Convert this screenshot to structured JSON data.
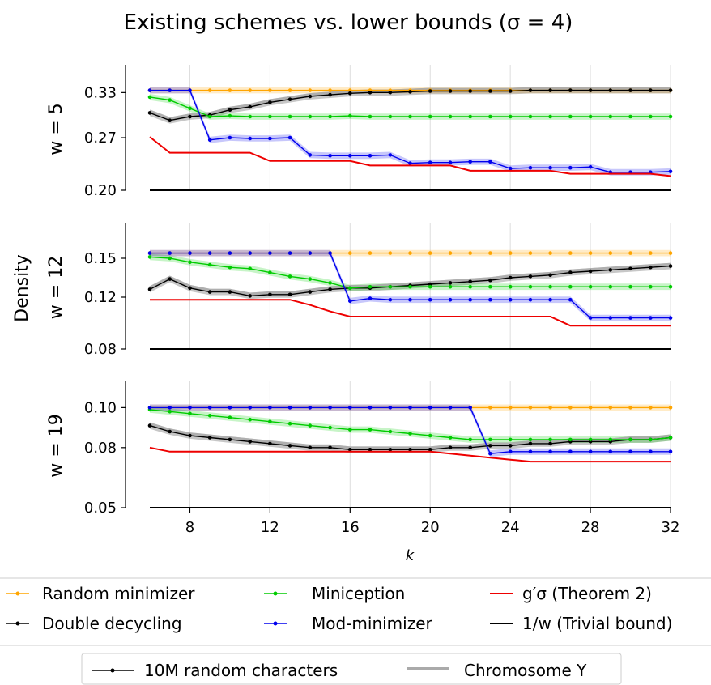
{
  "chart_data": {
    "type": "line",
    "title": "Existing schemes vs. lower bounds (σ = 4)",
    "ylabel": "Density",
    "xlabel": "k",
    "x": [
      6,
      7,
      8,
      9,
      10,
      11,
      12,
      13,
      14,
      15,
      16,
      17,
      18,
      19,
      20,
      21,
      22,
      23,
      24,
      25,
      26,
      27,
      28,
      29,
      30,
      31,
      32
    ],
    "xlim": [
      6,
      32
    ],
    "xticks": [
      "8",
      "12",
      "16",
      "20",
      "24",
      "28",
      "32"
    ],
    "grid": "vertical",
    "legend": {
      "placement": "bottom",
      "entries": [
        {
          "label": "Random minimizer",
          "color": "#ffa500"
        },
        {
          "label": "Double decycling",
          "color": "#000000"
        },
        {
          "label": "Miniception",
          "color": "#00cc00"
        },
        {
          "label": "Mod-minimizer",
          "color": "#0000ee"
        },
        {
          "label": "g′σ (Theorem 2)",
          "color": "#ee0000"
        },
        {
          "label": "1/w  (Trivial bound)",
          "color": "#000000"
        }
      ],
      "datasets": [
        {
          "label": "10M random characters",
          "color": "#000000"
        },
        {
          "label": "Chromosome Y",
          "color": "#aaaaaa"
        }
      ]
    },
    "panels": [
      {
        "name": "w = 5",
        "ylim": [
          0.2,
          0.367
        ],
        "yticks": [
          "0.33",
          "0.27",
          "0.20"
        ],
        "series": [
          {
            "name": "Random minimizer",
            "color": "#ffa500",
            "markers": true,
            "values": [
              0.333,
              0.333,
              0.333,
              0.333,
              0.333,
              0.333,
              0.333,
              0.333,
              0.333,
              0.333,
              0.333,
              0.333,
              0.333,
              0.333,
              0.333,
              0.333,
              0.333,
              0.333,
              0.333,
              0.333,
              0.333,
              0.333,
              0.333,
              0.333,
              0.333,
              0.333,
              0.333
            ]
          },
          {
            "name": "Double decycling",
            "color": "#000000",
            "markers": true,
            "values": [
              0.303,
              0.293,
              0.298,
              0.3,
              0.307,
              0.311,
              0.317,
              0.321,
              0.325,
              0.327,
              0.329,
              0.33,
              0.33,
              0.331,
              0.332,
              0.332,
              0.332,
              0.332,
              0.332,
              0.333,
              0.333,
              0.333,
              0.333,
              0.333,
              0.333,
              0.333,
              0.333
            ]
          },
          {
            "name": "Miniception",
            "color": "#00cc00",
            "markers": true,
            "values": [
              0.324,
              0.32,
              0.309,
              0.298,
              0.299,
              0.298,
              0.298,
              0.298,
              0.298,
              0.298,
              0.299,
              0.298,
              0.298,
              0.298,
              0.298,
              0.298,
              0.298,
              0.298,
              0.298,
              0.298,
              0.298,
              0.298,
              0.298,
              0.298,
              0.298,
              0.298,
              0.298
            ]
          },
          {
            "name": "Mod-minimizer",
            "color": "#0000ee",
            "markers": true,
            "values": [
              0.333,
              0.333,
              0.333,
              0.267,
              0.27,
              0.269,
              0.269,
              0.27,
              0.247,
              0.246,
              0.246,
              0.246,
              0.247,
              0.236,
              0.237,
              0.237,
              0.238,
              0.238,
              0.229,
              0.23,
              0.23,
              0.23,
              0.231,
              0.224,
              0.224,
              0.224,
              0.225
            ]
          },
          {
            "name": "g′σ (Theorem 2)",
            "color": "#ee0000",
            "markers": false,
            "values": [
              0.271,
              0.25,
              0.25,
              0.25,
              0.25,
              0.25,
              0.239,
              0.239,
              0.239,
              0.239,
              0.239,
              0.233,
              0.233,
              0.233,
              0.233,
              0.233,
              0.226,
              0.226,
              0.226,
              0.226,
              0.226,
              0.222,
              0.222,
              0.222,
              0.222,
              0.222,
              0.219
            ]
          },
          {
            "name": "1/w (Trivial bound)",
            "color": "#000000",
            "markers": false,
            "values": [
              0.2,
              0.2,
              0.2,
              0.2,
              0.2,
              0.2,
              0.2,
              0.2,
              0.2,
              0.2,
              0.2,
              0.2,
              0.2,
              0.2,
              0.2,
              0.2,
              0.2,
              0.2,
              0.2,
              0.2,
              0.2,
              0.2,
              0.2,
              0.2,
              0.2,
              0.2,
              0.2
            ]
          }
        ]
      },
      {
        "name": "w = 12",
        "ylim": [
          0.08,
          0.1775
        ],
        "yticks": [
          "0.15",
          "0.12",
          "0.08"
        ],
        "series": [
          {
            "name": "Random minimizer",
            "color": "#ffa500",
            "markers": true,
            "values": [
              0.154,
              0.154,
              0.154,
              0.154,
              0.154,
              0.154,
              0.154,
              0.154,
              0.154,
              0.154,
              0.154,
              0.154,
              0.154,
              0.154,
              0.154,
              0.154,
              0.154,
              0.154,
              0.154,
              0.154,
              0.154,
              0.154,
              0.154,
              0.154,
              0.154,
              0.154,
              0.154
            ]
          },
          {
            "name": "Double decycling",
            "color": "#000000",
            "markers": true,
            "values": [
              0.126,
              0.134,
              0.127,
              0.124,
              0.124,
              0.121,
              0.122,
              0.122,
              0.124,
              0.126,
              0.127,
              0.127,
              0.128,
              0.129,
              0.13,
              0.131,
              0.132,
              0.133,
              0.135,
              0.136,
              0.137,
              0.139,
              0.14,
              0.141,
              0.142,
              0.143,
              0.144
            ]
          },
          {
            "name": "Miniception",
            "color": "#00cc00",
            "markers": true,
            "values": [
              0.151,
              0.15,
              0.147,
              0.145,
              0.143,
              0.142,
              0.139,
              0.136,
              0.134,
              0.131,
              0.127,
              0.128,
              0.128,
              0.128,
              0.128,
              0.128,
              0.128,
              0.128,
              0.128,
              0.128,
              0.128,
              0.128,
              0.128,
              0.128,
              0.128,
              0.128,
              0.128
            ]
          },
          {
            "name": "Mod-minimizer",
            "color": "#0000ee",
            "markers": true,
            "values": [
              0.154,
              0.154,
              0.154,
              0.154,
              0.154,
              0.154,
              0.154,
              0.154,
              0.154,
              0.154,
              0.117,
              0.119,
              0.118,
              0.118,
              0.118,
              0.118,
              0.118,
              0.118,
              0.118,
              0.118,
              0.118,
              0.118,
              0.104,
              0.104,
              0.104,
              0.104,
              0.104
            ]
          },
          {
            "name": "g′σ (Theorem 2)",
            "color": "#ee0000",
            "markers": false,
            "values": [
              0.118,
              0.118,
              0.118,
              0.118,
              0.118,
              0.118,
              0.118,
              0.118,
              0.114,
              0.109,
              0.105,
              0.105,
              0.105,
              0.105,
              0.105,
              0.105,
              0.105,
              0.105,
              0.105,
              0.105,
              0.105,
              0.098,
              0.098,
              0.098,
              0.098,
              0.098,
              0.098
            ]
          },
          {
            "name": "1/w (Trivial bound)",
            "color": "#000000",
            "markers": false,
            "values": [
              0.08,
              0.08,
              0.08,
              0.08,
              0.08,
              0.08,
              0.08,
              0.08,
              0.08,
              0.08,
              0.08,
              0.08,
              0.08,
              0.08,
              0.08,
              0.08,
              0.08,
              0.08,
              0.08,
              0.08,
              0.08,
              0.08,
              0.08,
              0.08,
              0.08,
              0.08,
              0.08
            ]
          }
        ]
      },
      {
        "name": "w = 19",
        "ylim": [
          0.05,
          0.1135
        ],
        "yticks": [
          "0.10",
          "0.08",
          "0.05"
        ],
        "series": [
          {
            "name": "Random minimizer",
            "color": "#ffa500",
            "markers": true,
            "values": [
              0.1,
              0.1,
              0.1,
              0.1,
              0.1,
              0.1,
              0.1,
              0.1,
              0.1,
              0.1,
              0.1,
              0.1,
              0.1,
              0.1,
              0.1,
              0.1,
              0.1,
              0.1,
              0.1,
              0.1,
              0.1,
              0.1,
              0.1,
              0.1,
              0.1,
              0.1,
              0.1
            ]
          },
          {
            "name": "Double decycling",
            "color": "#000000",
            "markers": true,
            "values": [
              0.091,
              0.088,
              0.086,
              0.085,
              0.084,
              0.083,
              0.082,
              0.081,
              0.08,
              0.08,
              0.079,
              0.079,
              0.079,
              0.079,
              0.079,
              0.08,
              0.08,
              0.081,
              0.081,
              0.082,
              0.082,
              0.083,
              0.083,
              0.083,
              0.084,
              0.084,
              0.085
            ]
          },
          {
            "name": "Miniception",
            "color": "#00cc00",
            "markers": true,
            "values": [
              0.099,
              0.098,
              0.097,
              0.096,
              0.095,
              0.094,
              0.093,
              0.092,
              0.091,
              0.09,
              0.089,
              0.089,
              0.088,
              0.087,
              0.086,
              0.085,
              0.084,
              0.084,
              0.084,
              0.084,
              0.084,
              0.084,
              0.084,
              0.084,
              0.084,
              0.084,
              0.085
            ]
          },
          {
            "name": "Mod-minimizer",
            "color": "#0000ee",
            "markers": true,
            "values": [
              0.1,
              0.1,
              0.1,
              0.1,
              0.1,
              0.1,
              0.1,
              0.1,
              0.1,
              0.1,
              0.1,
              0.1,
              0.1,
              0.1,
              0.1,
              0.1,
              0.1,
              0.077,
              0.078,
              0.078,
              0.078,
              0.078,
              0.078,
              0.078,
              0.078,
              0.078,
              0.078
            ]
          },
          {
            "name": "g′σ (Theorem 2)",
            "color": "#ee0000",
            "markers": false,
            "values": [
              0.08,
              0.078,
              0.078,
              0.078,
              0.078,
              0.078,
              0.078,
              0.078,
              0.078,
              0.078,
              0.078,
              0.078,
              0.078,
              0.078,
              0.078,
              0.077,
              0.076,
              0.075,
              0.074,
              0.073,
              0.073,
              0.073,
              0.073,
              0.073,
              0.073,
              0.073,
              0.073
            ]
          },
          {
            "name": "1/w (Trivial bound)",
            "color": "#000000",
            "markers": false,
            "values": [
              0.05,
              0.05,
              0.05,
              0.05,
              0.05,
              0.05,
              0.05,
              0.05,
              0.05,
              0.05,
              0.05,
              0.05,
              0.05,
              0.05,
              0.05,
              0.05,
              0.05,
              0.05,
              0.05,
              0.05,
              0.05,
              0.05,
              0.05,
              0.05,
              0.05,
              0.05,
              0.05
            ]
          }
        ]
      }
    ]
  }
}
